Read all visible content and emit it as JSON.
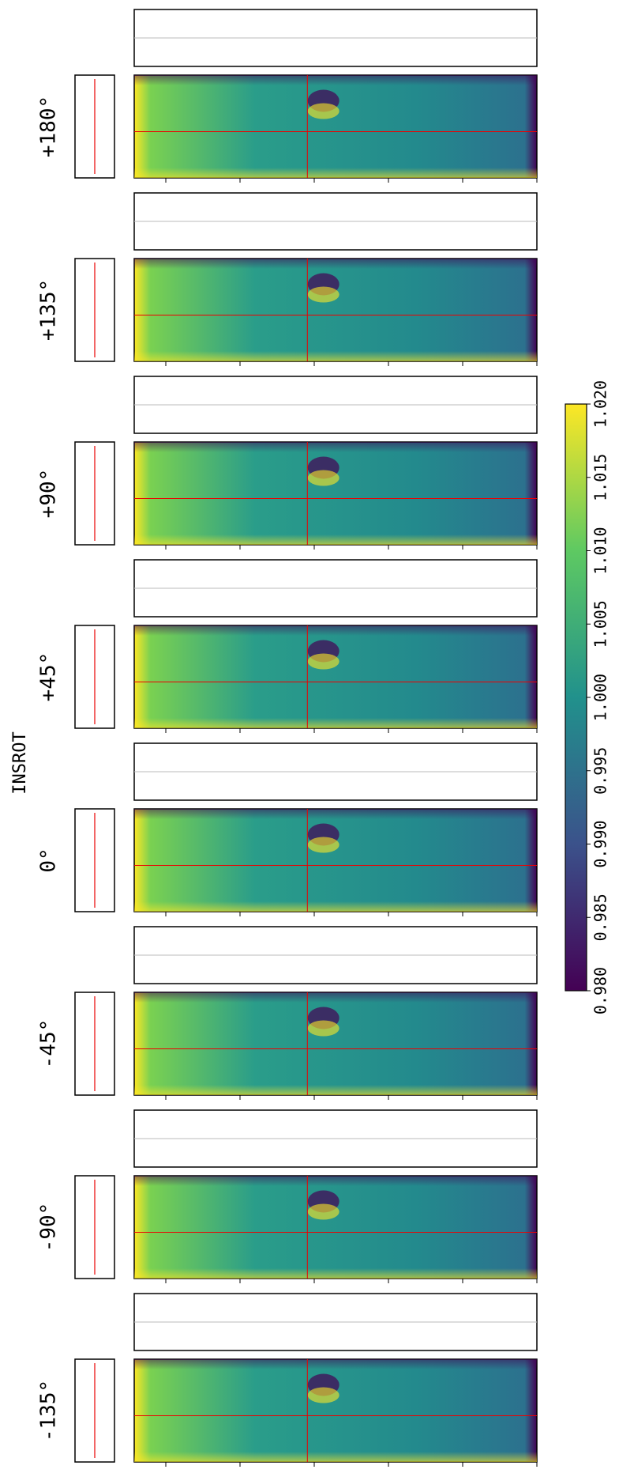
{
  "chart_data": {
    "type": "heatmap",
    "ylabel": "INSROT",
    "panels": [
      "+180°",
      "+135°",
      "+90°",
      "+45°",
      "0°",
      "-45°",
      "-90°",
      "-135°"
    ],
    "colorbar": {
      "colors": [
        "#440154",
        "#3b528b",
        "#21918c",
        "#5ec962",
        "#fde725"
      ],
      "lim": [
        0.98,
        1.02
      ],
      "ticks": [
        {
          "value": 0.98,
          "label": "0.980"
        },
        {
          "value": 0.985,
          "label": "0.985"
        },
        {
          "value": 0.99,
          "label": "0.990"
        },
        {
          "value": 0.995,
          "label": "0.995"
        },
        {
          "value": 1.0,
          "label": "1.000"
        },
        {
          "value": 1.005,
          "label": "1.005"
        },
        {
          "value": 1.01,
          "label": "1.010"
        },
        {
          "value": 1.015,
          "label": "1.015"
        },
        {
          "value": 1.02,
          "label": "1.020"
        }
      ]
    }
  }
}
